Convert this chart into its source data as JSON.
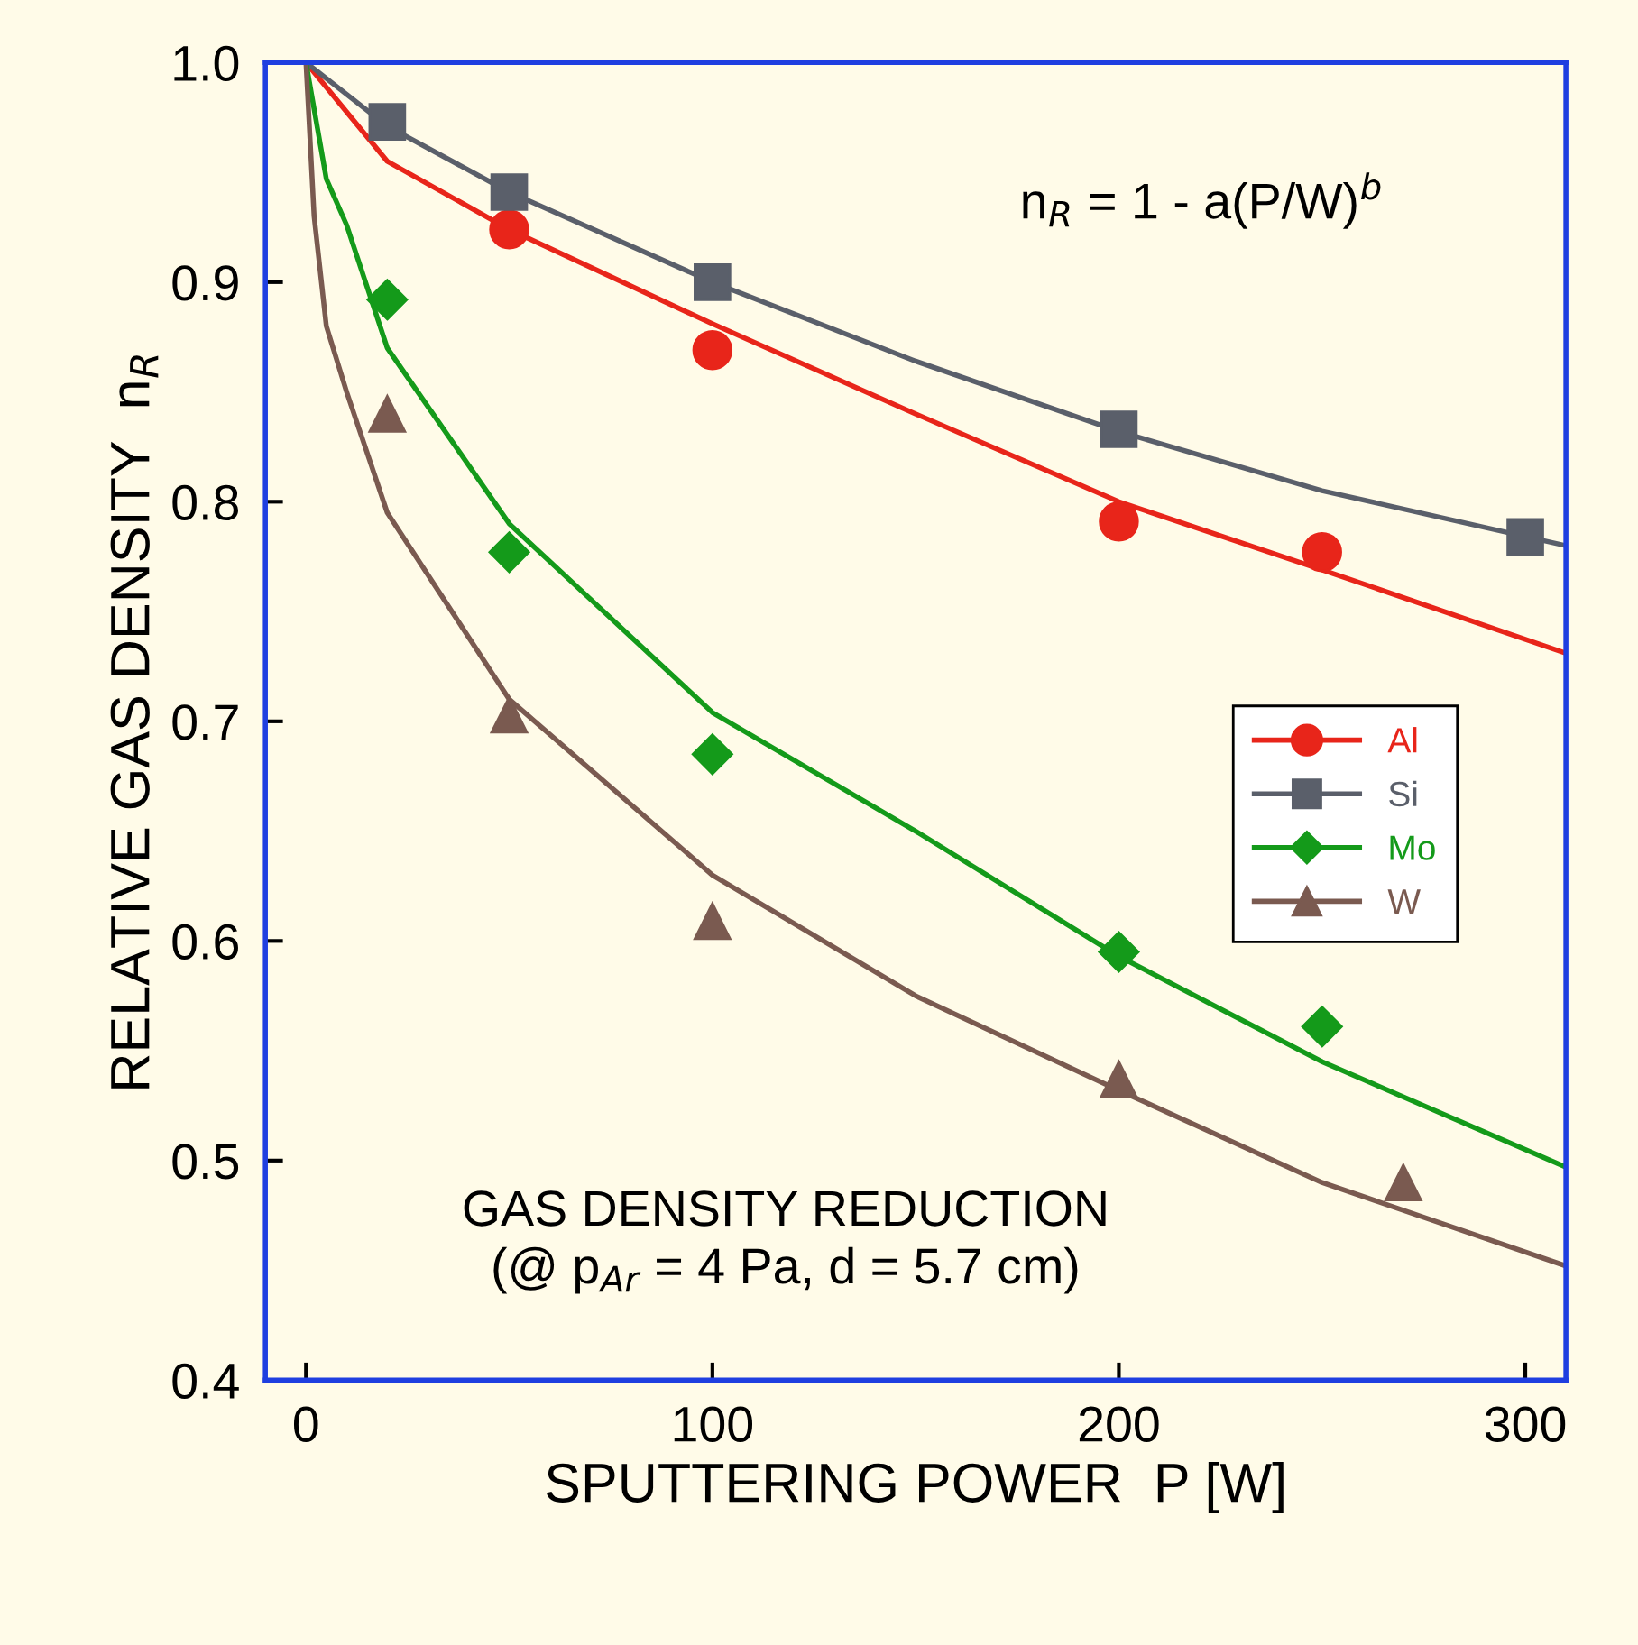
{
  "chart_data": {
    "type": "scatter",
    "xlabel": "SPUTTERING POWER  P [W]",
    "ylabel": "RELATIVE GAS DENSITY  n$_{R}$",
    "xlim": [
      -10,
      310
    ],
    "ylim": [
      0.4,
      1.0
    ],
    "xticks": [
      0,
      100,
      200,
      300
    ],
    "yticks": [
      0.4,
      0.5,
      0.6,
      0.7,
      0.8,
      0.9,
      {
        "value": 1,
        "label": "1.0"
      }
    ],
    "grid": false,
    "legend": "right",
    "annotations": [
      "n$_{R}$ = 1 - a(P/W)$^{b}$",
      "GAS DENSITY REDUCTION\n(@ p$_{Ar}$ = 4 Pa, d = 5.7 cm)"
    ],
    "series": [
      {
        "type": "line",
        "color": "#e8251a",
        "x": [
          0,
          20,
          50,
          100,
          150,
          200,
          250,
          310
        ],
        "values": [
          1.0,
          0.955,
          0.924,
          0.881,
          0.84,
          0.8,
          0.769,
          0.731
        ]
      },
      {
        "type": "line",
        "color": "#5a5f6a",
        "x": [
          0,
          20,
          50,
          100,
          150,
          200,
          250,
          310
        ],
        "values": [
          1.0,
          0.971,
          0.941,
          0.9,
          0.864,
          0.832,
          0.805,
          0.78
        ]
      },
      {
        "type": "line",
        "color": "#149a1a",
        "x": [
          0,
          5,
          10,
          20,
          50,
          100,
          150,
          200,
          250,
          310
        ],
        "values": [
          1.0,
          0.947,
          0.926,
          0.87,
          0.79,
          0.704,
          0.65,
          0.593,
          0.545,
          0.497
        ]
      },
      {
        "type": "line",
        "color": "#7a5a50",
        "x": [
          0,
          2,
          5,
          10,
          20,
          50,
          100,
          150,
          200,
          250,
          310
        ],
        "values": [
          1.0,
          0.93,
          0.88,
          0.85,
          0.795,
          0.71,
          0.63,
          0.575,
          0.532,
          0.49,
          0.452
        ]
      },
      {
        "name": "Al",
        "marker": "circle",
        "color": "#e8251a",
        "x": [
          50,
          100,
          200,
          250
        ],
        "values": [
          0.924,
          0.869,
          0.791,
          0.777
        ]
      },
      {
        "name": "Si",
        "marker": "square",
        "color": "#5a5f6a",
        "x": [
          20,
          50,
          100,
          200,
          300
        ],
        "values": [
          0.973,
          0.941,
          0.9,
          0.833,
          0.784
        ]
      },
      {
        "name": "Mo",
        "marker": "diamond",
        "color": "#149a1a",
        "x": [
          20,
          50,
          100,
          200,
          250
        ],
        "values": [
          0.892,
          0.777,
          0.685,
          0.595,
          0.561
        ]
      },
      {
        "name": "W",
        "marker": "triangle",
        "color": "#7a5a50",
        "x": [
          20,
          50,
          100,
          200,
          270
        ],
        "values": [
          0.84,
          0.703,
          0.609,
          0.537,
          0.49
        ]
      }
    ]
  }
}
